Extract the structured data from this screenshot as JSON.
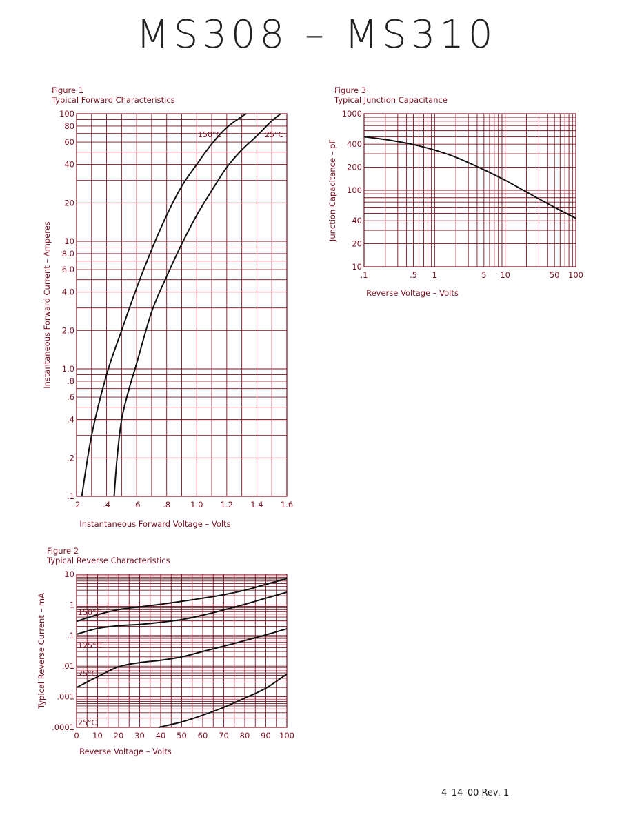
{
  "page_title": "MS308  –  MS310",
  "footer": "4–14–00   Rev. 1",
  "chart_data": [
    {
      "id": "fig1",
      "type": "line",
      "figure_label": "Figure 1",
      "title": "Typical Forward Characteristics",
      "xlabel": "Instantaneous Forward Voltage – Volts",
      "ylabel": "Instantaneous Forward Current – Amperes",
      "x_scale": "linear",
      "y_scale": "log",
      "xlim": [
        0.2,
        1.6
      ],
      "ylim": [
        0.1,
        100
      ],
      "x_ticks": [
        0.2,
        0.4,
        0.6,
        0.8,
        1.0,
        1.2,
        1.4,
        1.6
      ],
      "x_tick_labels": [
        ".2",
        ".4",
        ".6",
        ".8",
        "1.0",
        "1.2",
        "1.4",
        "1.6"
      ],
      "y_ticks": [
        0.1,
        0.2,
        0.4,
        0.6,
        0.8,
        1.0,
        2.0,
        4.0,
        6.0,
        8.0,
        10,
        20,
        40,
        60,
        80,
        100
      ],
      "y_tick_labels": [
        ".1",
        ".2",
        ".4",
        ".6",
        ".8",
        "1.0",
        "2.0",
        "4.0",
        "6.0",
        "8.0",
        "10",
        "20",
        "40",
        "60",
        "80",
        "100"
      ],
      "grid": true,
      "series": [
        {
          "name": "150°C",
          "x": [
            0.235,
            0.3,
            0.4,
            0.5,
            0.6,
            0.7,
            0.8,
            0.9,
            1.0,
            1.1,
            1.2,
            1.3,
            1.33
          ],
          "y": [
            0.1,
            0.3,
            0.9,
            2.0,
            4.3,
            8.6,
            16,
            27,
            40,
            58,
            78,
            95,
            100
          ]
        },
        {
          "name": "25°C",
          "x": [
            0.45,
            0.47,
            0.5,
            0.55,
            0.6,
            0.7,
            0.8,
            0.9,
            1.0,
            1.1,
            1.2,
            1.3,
            1.4,
            1.5,
            1.56
          ],
          "y": [
            0.1,
            0.2,
            0.4,
            0.7,
            1.1,
            2.8,
            5.3,
            9.5,
            16,
            25,
            38,
            52,
            67,
            88,
            100
          ]
        }
      ]
    },
    {
      "id": "fig2",
      "type": "line",
      "figure_label": "Figure 2",
      "title": "Typical Reverse Characteristics",
      "xlabel": "Reverse Voltage – Volts",
      "ylabel": "Typical Reverse Current – mA",
      "x_scale": "linear",
      "y_scale": "log",
      "xlim": [
        0,
        100
      ],
      "ylim": [
        0.0001,
        10
      ],
      "x_ticks": [
        0,
        10,
        20,
        30,
        40,
        50,
        60,
        70,
        80,
        90,
        100
      ],
      "x_tick_labels": [
        "0",
        "10",
        "20",
        "30",
        "40",
        "50",
        "60",
        "70",
        "80",
        "90",
        "100"
      ],
      "y_ticks": [
        0.0001,
        0.001,
        0.01,
        0.1,
        1,
        10
      ],
      "y_tick_labels": [
        ".0001",
        ".001",
        ".01",
        ".1",
        "1",
        "10"
      ],
      "grid": true,
      "series": [
        {
          "name": "150°C",
          "x": [
            0,
            10,
            20,
            30,
            40,
            50,
            60,
            70,
            80,
            90,
            100
          ],
          "y": [
            0.29,
            0.48,
            0.7,
            0.86,
            1.05,
            1.3,
            1.65,
            2.15,
            3.0,
            4.7,
            7.2
          ]
        },
        {
          "name": "",
          "x": [
            0,
            10,
            20,
            30,
            40,
            50,
            60,
            70,
            80,
            90,
            100
          ],
          "y": [
            0.11,
            0.17,
            0.21,
            0.23,
            0.27,
            0.33,
            0.46,
            0.68,
            1.05,
            1.65,
            2.6
          ]
        },
        {
          "name": "125°C",
          "x": [
            0,
            10,
            20,
            30,
            40,
            50,
            60,
            70,
            80,
            90,
            100
          ],
          "y": [
            0.002,
            0.0045,
            0.0095,
            0.013,
            0.0155,
            0.02,
            0.03,
            0.045,
            0.068,
            0.105,
            0.165
          ]
        },
        {
          "name": "25°C",
          "x": [
            39,
            50,
            60,
            70,
            80,
            90,
            100
          ],
          "y": [
            0.0001,
            0.00015,
            0.00025,
            0.00045,
            0.0009,
            0.0019,
            0.0055
          ]
        }
      ],
      "annotations": [
        "150°C",
        "125°C",
        "75°C",
        "25°C"
      ]
    },
    {
      "id": "fig3",
      "type": "line",
      "figure_label": "Figure 3",
      "title": "Typical Junction Capacitance",
      "xlabel": "Reverse Voltage – Volts",
      "ylabel": "Junction Capacitance – pF",
      "x_scale": "log",
      "y_scale": "log",
      "xlim": [
        0.1,
        100
      ],
      "ylim": [
        10,
        1000
      ],
      "x_ticks": [
        0.1,
        0.5,
        1,
        5,
        10,
        50,
        100
      ],
      "x_tick_labels": [
        ".1",
        ".5",
        "1",
        "5",
        "10",
        "50",
        "100"
      ],
      "y_ticks": [
        10,
        20,
        40,
        100,
        200,
        400,
        1000
      ],
      "y_tick_labels": [
        "10",
        "20",
        "40",
        "100",
        "200",
        "400",
        "1000"
      ],
      "grid": true,
      "series": [
        {
          "name": "",
          "x": [
            0.1,
            0.2,
            0.5,
            1,
            2,
            5,
            10,
            20,
            50,
            100
          ],
          "y": [
            500,
            460,
            395,
            335,
            270,
            185,
            135,
            95,
            60,
            43
          ]
        }
      ]
    }
  ]
}
